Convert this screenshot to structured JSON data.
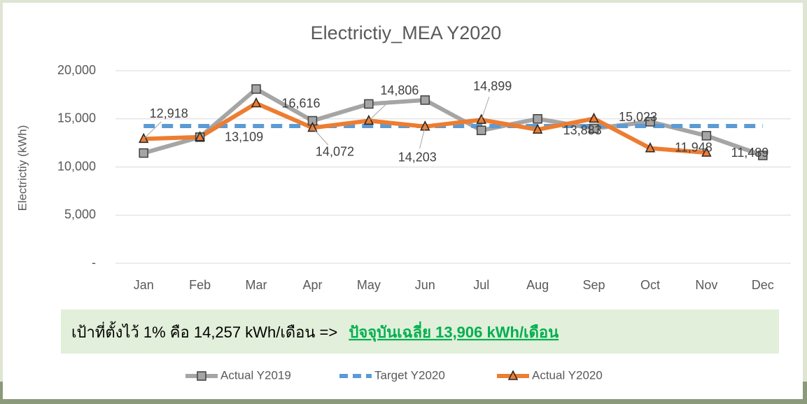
{
  "chart_data": {
    "type": "line",
    "title": "Electrictiy_MEA Y2020",
    "y_label": "Electrictiy (kWh)",
    "categories": [
      "Jan",
      "Feb",
      "Mar",
      "Apr",
      "May",
      "Jun",
      "Jul",
      "Aug",
      "Sep",
      "Oct",
      "Nov",
      "Dec"
    ],
    "series": [
      {
        "name": "Actual Y2019",
        "color": "#a5a5a5",
        "marker": "square",
        "dash": false,
        "values": [
          11450,
          13100,
          18100,
          14800,
          16550,
          16950,
          13800,
          15000,
          14000,
          14700,
          13250,
          11200
        ]
      },
      {
        "name": "Target Y2020",
        "color": "#5b9bd5",
        "marker": "none",
        "dash": true,
        "values": [
          14257,
          14257,
          14257,
          14257,
          14257,
          14257,
          14257,
          14257,
          14257,
          14257,
          14257,
          14257
        ]
      },
      {
        "name": "Actual Y2020",
        "color": "#ed7d31",
        "marker": "triangle",
        "dash": false,
        "values": [
          12918,
          13109,
          16616,
          14072,
          14806,
          14203,
          14899,
          13883,
          15023,
          11948,
          11489,
          null
        ],
        "value_labels": [
          "12,918",
          "13,109",
          "16,616",
          "14,072",
          "14,806",
          "14,203",
          "14,899",
          "13,883",
          "15,023",
          "11,948",
          "11,489",
          null
        ]
      }
    ],
    "ylim": [
      0,
      20000
    ],
    "yticks": [
      {
        "value": 0,
        "label": "-"
      },
      {
        "value": 5000,
        "label": "5,000"
      },
      {
        "value": 10000,
        "label": "10,000"
      },
      {
        "value": 15000,
        "label": "15,000"
      },
      {
        "value": 20000,
        "label": "20,000"
      }
    ],
    "grid": true,
    "legend": "bottom",
    "annotation": {
      "text": "เป้าที่ตั้งไว้ 1% คือ 14,257 kWh/เดือน =>",
      "highlight": "ปัจจุบันเฉลี่ย 13,906 kWh/เดือน"
    }
  }
}
